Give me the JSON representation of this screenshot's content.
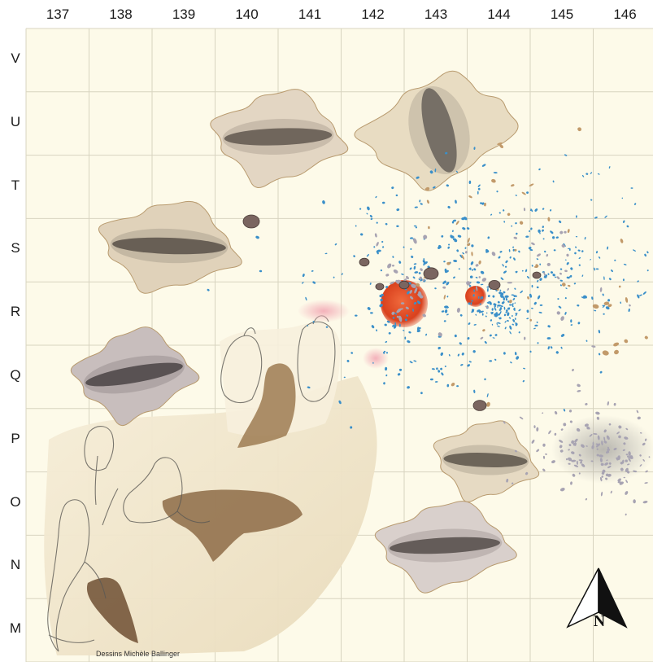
{
  "grid": {
    "columns": [
      "137",
      "138",
      "139",
      "140",
      "141",
      "142",
      "143",
      "144",
      "145",
      "146"
    ],
    "rows": [
      "V",
      "U",
      "T",
      "S",
      "R",
      "Q",
      "P",
      "O",
      "N",
      "M"
    ]
  },
  "credit": "Dessins Michèle Ballinger",
  "north_arrow": {
    "letter": "N"
  },
  "colors": {
    "background": "#fdfae9",
    "grid_line": "#d8d4c0",
    "hide": "#c9b79c",
    "hide_dark": "#4f4740",
    "hearth": "#d9411e",
    "debris": "#3a8fc9",
    "stone": "#a7a3b2",
    "bone": "#c29a6a",
    "ash_spot": "#f2b7c0",
    "ash_concentration": "#b5b3ad",
    "sketch_wash": "#efe3c8"
  }
}
